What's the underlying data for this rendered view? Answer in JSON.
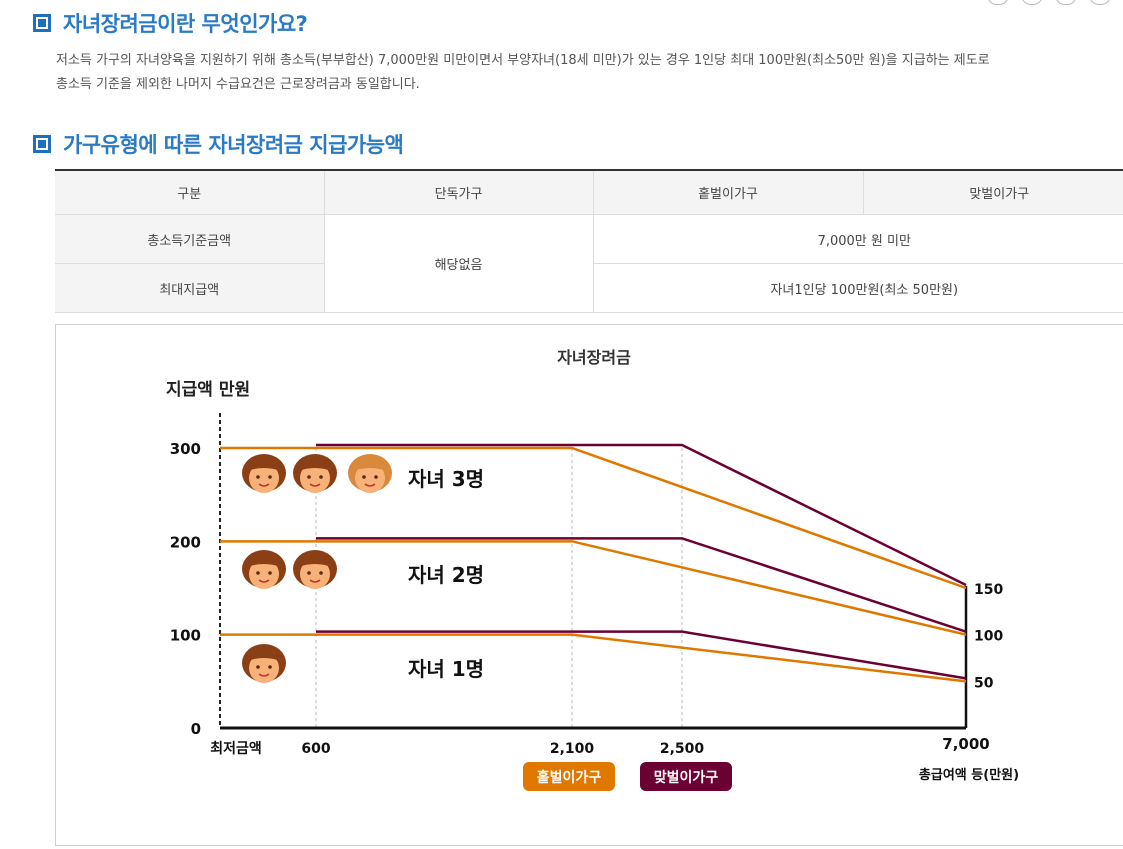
{
  "sections": [
    {
      "title": "자녀장려금이란 무엇인가요?"
    },
    {
      "title": "가구유형에 따른 자녀장려금 지급가능액"
    }
  ],
  "intro": {
    "line1": "저소득 가구의 자녀양육을 지원하기 위해 총소득(부부합산) 7,000만원 미만이면서 부양자녀(18세 미만)가 있는 경우 1인당 최대 100만원(최소50만 원)을 지급하는 제도로",
    "line2": "총소득 기준을 제외한 나머지 수급요건은 근로장려금과 동일합니다."
  },
  "table": {
    "headers": [
      "구분",
      "단독가구",
      "홑벌이가구",
      "맞벌이가구"
    ],
    "rows": [
      {
        "label": "총소득기준금액",
        "solo": "해당없음",
        "shared": "7,000만 원 미만"
      },
      {
        "label": "최대지급액",
        "shared": "자녀1인당 100만원(최소 50만원)"
      }
    ]
  },
  "chart_data": {
    "type": "line",
    "title": "자녀장려금",
    "ylabel": "지급액 만원",
    "xlabel": "총급여액 등(만원)",
    "y_ticks": [
      "0",
      "100",
      "200",
      "300"
    ],
    "x_ticks": [
      {
        "value": 0,
        "label": "최저금액"
      },
      {
        "value": 600,
        "label": "600"
      },
      {
        "value": 2100,
        "label": "2,100"
      },
      {
        "value": 2500,
        "label": "2,500"
      },
      {
        "value": 7000,
        "label": "7,000"
      }
    ],
    "ylim": [
      0,
      300
    ],
    "end_labels": [
      "150",
      "100",
      "50"
    ],
    "series": [
      {
        "name": "홑벌이가구",
        "color": "#e07800",
        "groups": [
          {
            "label": "자녀 3명",
            "points": [
              [
                0,
                300
              ],
              [
                2100,
                300
              ],
              [
                7000,
                150
              ]
            ]
          },
          {
            "label": "자녀 2명",
            "points": [
              [
                0,
                200
              ],
              [
                2100,
                200
              ],
              [
                7000,
                100
              ]
            ]
          },
          {
            "label": "자녀 1명",
            "points": [
              [
                0,
                100
              ],
              [
                2100,
                100
              ],
              [
                7000,
                50
              ]
            ]
          }
        ]
      },
      {
        "name": "맞벌이가구",
        "color": "#6b0033",
        "groups": [
          {
            "label": "자녀 3명",
            "points": [
              [
                600,
                300
              ],
              [
                2500,
                300
              ],
              [
                7000,
                150
              ]
            ]
          },
          {
            "label": "자녀 2명",
            "points": [
              [
                600,
                200
              ],
              [
                2500,
                200
              ],
              [
                7000,
                100
              ]
            ]
          },
          {
            "label": "자녀 1명",
            "points": [
              [
                600,
                100
              ],
              [
                2500,
                100
              ],
              [
                7000,
                50
              ]
            ]
          }
        ]
      }
    ],
    "group_labels": [
      "자녀 3명",
      "자녀 2명",
      "자녀 1명"
    ],
    "child_icon_counts": [
      3,
      2,
      1
    ],
    "legend": [
      "홑벌이가구",
      "맞벌이가구"
    ],
    "legend_position": "bottom",
    "grid": "vertical-dotted"
  }
}
